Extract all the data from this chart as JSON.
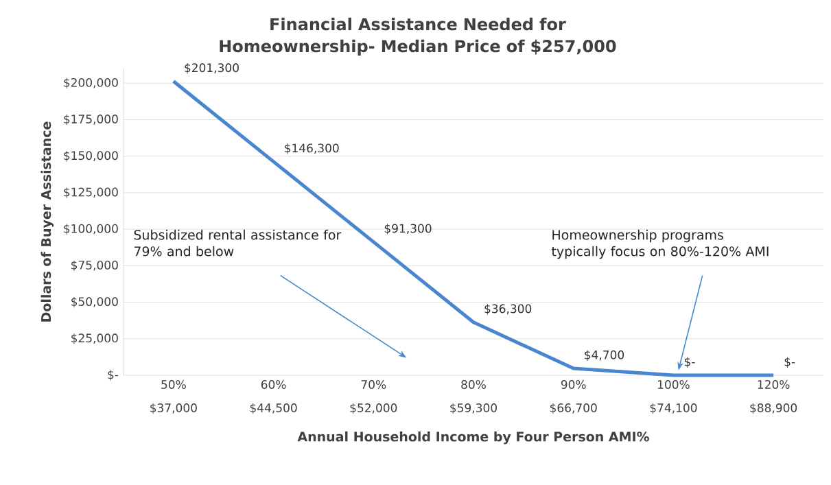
{
  "chart_data": {
    "type": "line",
    "title": "Financial Assistance Needed for Homeownership- Median Price of $257,000",
    "xlabel": "Annual Household Income by Four Person AMI%",
    "ylabel": "Dollars of Buyer Assistance",
    "categories": [
      "50% $37,000",
      "60% $44,500",
      "70% $52,000",
      "80% $59,300",
      "90% $66,700",
      "100% $74,100",
      "120% $88,900"
    ],
    "series": [
      {
        "color": "#4a86cf",
        "values": [
          201300,
          146300,
          91300,
          36300,
          4700,
          0,
          0
        ],
        "value_labels": [
          "$201,300",
          "$146,300",
          "$91,300",
          "$36,300",
          "$4,700",
          "$-",
          "$-"
        ]
      }
    ],
    "ylim": [
      0,
      210000
    ],
    "yticks": [
      {
        "value": 0,
        "label": "$-"
      },
      {
        "value": 25000,
        "label": "$25,000"
      },
      {
        "value": 50000,
        "label": "$50,000"
      },
      {
        "value": 75000,
        "label": "$75,000"
      },
      {
        "value": 100000,
        "label": "$100,000"
      },
      {
        "value": 125000,
        "label": "$125,000"
      },
      {
        "value": 150000,
        "label": "$150,000"
      },
      {
        "value": 175000,
        "label": "$175,000"
      },
      {
        "value": 200000,
        "label": "$200,000"
      }
    ],
    "annotations": [
      "Subsidized rental assistance for 79% and below",
      "Homeownership programs typically focus on 80%-120% AMI"
    ],
    "grid": "y",
    "marker": "none",
    "line_style": "solid"
  }
}
